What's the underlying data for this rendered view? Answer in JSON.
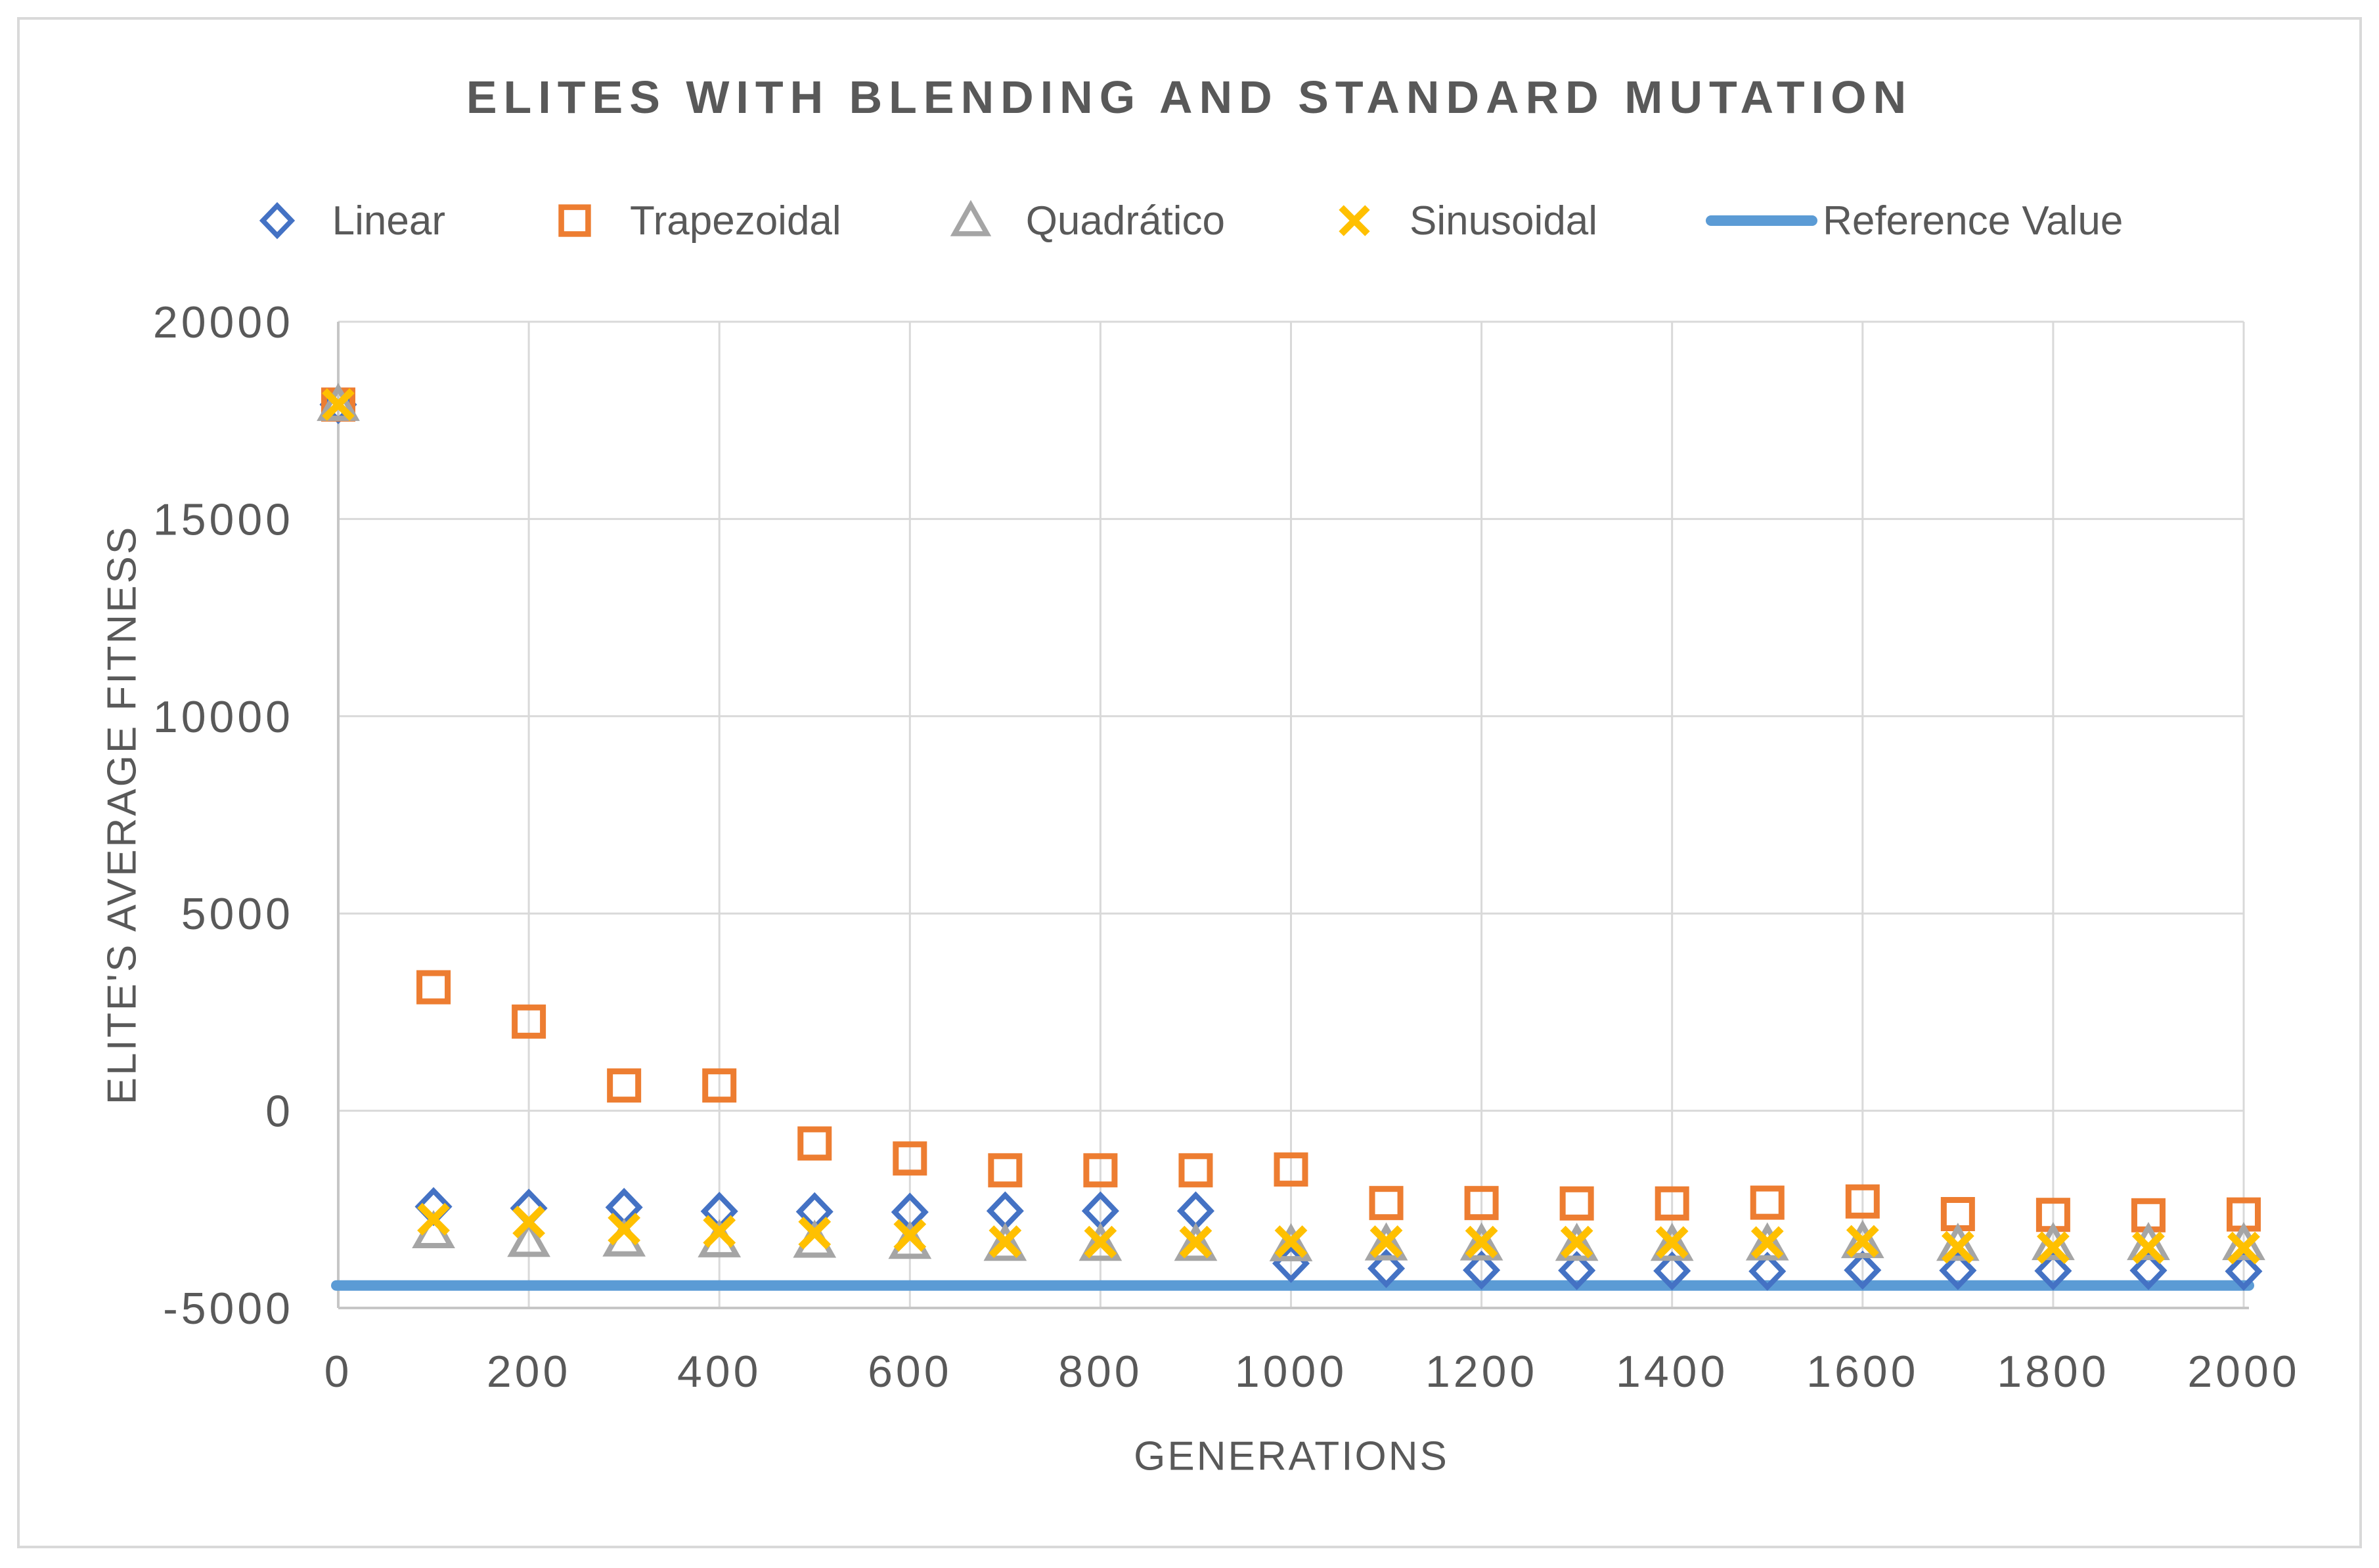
{
  "title": "ELITES WITH BLENDING AND STANDARD MUTATION",
  "colors": {
    "linear": "#4472C4",
    "trapezoidal": "#ED7D31",
    "quadratico": "#A5A5A5",
    "sinusoidal": "#FFC000",
    "reference": "#5B9BD5",
    "text": "#595959",
    "gridline": "#D9D9D9",
    "axis_line": "#C6C6C6",
    "frame_border": "#D9D9D9"
  },
  "chart_data": {
    "type": "scatter",
    "title": "ELITES WITH BLENDING AND STANDARD MUTATION",
    "xlabel": "GENERATIONS",
    "ylabel": "ELITE'S AVERAGE FITNESS",
    "xlim": [
      0,
      2000
    ],
    "ylim": [
      -5000,
      20000
    ],
    "x_ticks": [
      0,
      200,
      400,
      600,
      800,
      1000,
      1200,
      1400,
      1600,
      1800,
      2000
    ],
    "y_ticks": [
      20000,
      15000,
      10000,
      5000,
      0,
      -5000
    ],
    "grid": true,
    "legend_position": "top",
    "x": [
      0,
      100,
      200,
      300,
      400,
      500,
      600,
      700,
      800,
      900,
      1000,
      1100,
      1200,
      1300,
      1400,
      1500,
      1600,
      1700,
      1800,
      1900,
      2000
    ],
    "series": [
      {
        "name": "Linear",
        "marker": "diamond",
        "color": "#4472C4",
        "values": [
          17900,
          -2430,
          -2470,
          -2450,
          -2550,
          -2560,
          -2570,
          -2540,
          -2540,
          -2540,
          -3870,
          -4000,
          -4040,
          -4050,
          -4060,
          -4070,
          -4040,
          -4050,
          -4060,
          -4050,
          -4070
        ]
      },
      {
        "name": "Trapezoidal",
        "marker": "square",
        "color": "#ED7D31",
        "values": [
          17900,
          3130,
          2260,
          640,
          640,
          -830,
          -1210,
          -1510,
          -1510,
          -1510,
          -1490,
          -2340,
          -2340,
          -2350,
          -2350,
          -2330,
          -2300,
          -2620,
          -2640,
          -2650,
          -2630
        ]
      },
      {
        "name": "Quadrático",
        "marker": "triangle",
        "color": "#A5A5A5",
        "values": [
          17900,
          -3070,
          -3290,
          -3280,
          -3300,
          -3310,
          -3340,
          -3390,
          -3390,
          -3390,
          -3400,
          -3380,
          -3380,
          -3390,
          -3390,
          -3380,
          -3320,
          -3390,
          -3370,
          -3370,
          -3370
        ]
      },
      {
        "name": "Sinusoidal",
        "marker": "x",
        "color": "#FFC000",
        "values": [
          17900,
          -2750,
          -2820,
          -3000,
          -3060,
          -3100,
          -3160,
          -3320,
          -3330,
          -3330,
          -3320,
          -3320,
          -3330,
          -3330,
          -3340,
          -3340,
          -3310,
          -3460,
          -3470,
          -3470,
          -3480
        ]
      },
      {
        "name": "Reference Value",
        "marker": "line",
        "color": "#5B9BD5",
        "value": -4430
      }
    ]
  }
}
